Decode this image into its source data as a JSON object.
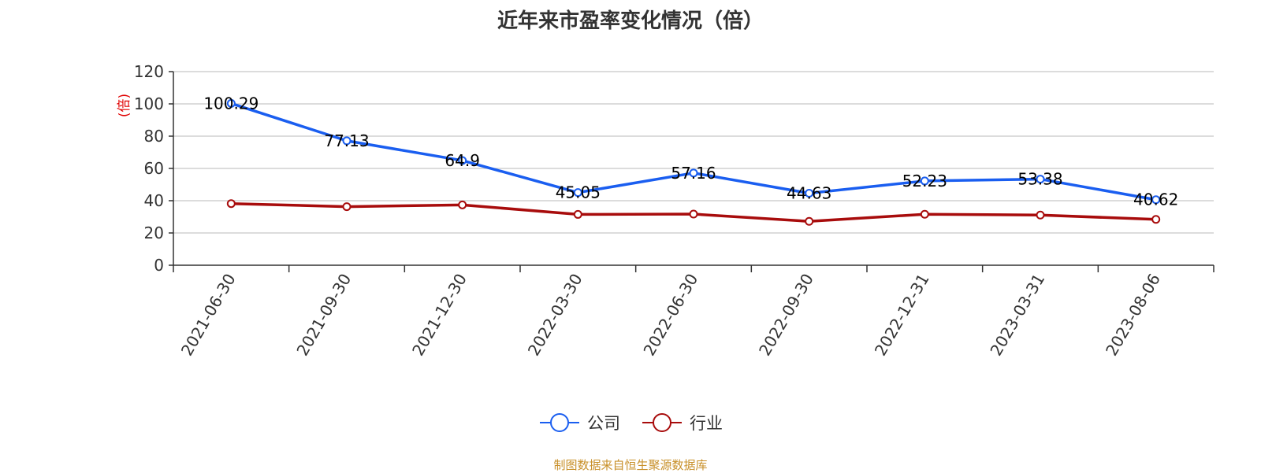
{
  "chart_data": {
    "type": "line",
    "title": "近年来市盈率变化情况（倍）",
    "ylabel": "(倍)",
    "xlabel": "",
    "categories": [
      "2021-06-30",
      "2021-09-30",
      "2021-12-30",
      "2022-03-30",
      "2022-06-30",
      "2022-09-30",
      "2022-12-31",
      "2023-03-31",
      "2023-08-06"
    ],
    "ylim": [
      0,
      120
    ],
    "yticks": [
      "0",
      "20",
      "40",
      "60",
      "80",
      "100",
      "120"
    ],
    "grid": true,
    "legend_position": "bottom-center",
    "series": [
      {
        "name": "公司",
        "color": "#1a5ef0",
        "values": [
          100.29,
          77.13,
          64.9,
          45.05,
          57.16,
          44.63,
          52.23,
          53.38,
          40.62
        ],
        "labels": [
          "100.29",
          "77.13",
          "64.9",
          "45.05",
          "57.16",
          "44.63",
          "52.23",
          "53.38",
          "40.62"
        ]
      },
      {
        "name": "行业",
        "color": "#a80c0c",
        "values": [
          38.2,
          36.3,
          37.4,
          31.5,
          31.7,
          27.2,
          31.6,
          31.1,
          28.4
        ],
        "labels": []
      }
    ]
  },
  "footer": {
    "source": "制图数据来自恒生聚源数据库"
  }
}
